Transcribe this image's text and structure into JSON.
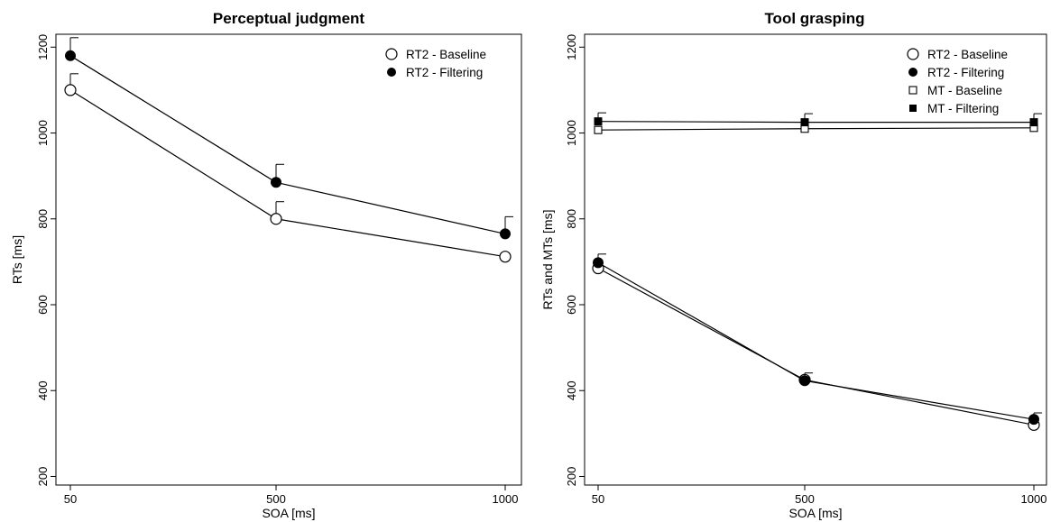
{
  "chart_data": [
    {
      "type": "line",
      "title": "Perceptual judgment",
      "xlabel": "SOA [ms]",
      "ylabel": "RTs [ms]",
      "x": [
        50,
        500,
        1000
      ],
      "x_tick_labels": [
        "50",
        "500",
        "1000"
      ],
      "ylim": [
        180,
        1230
      ],
      "y_ticks": [
        200,
        400,
        600,
        800,
        1000,
        1200
      ],
      "y_tick_labels": [
        "200",
        "400",
        "600",
        "800",
        "1000",
        "1200"
      ],
      "grid": false,
      "legend_position": "top-right",
      "series": [
        {
          "name": "RT2 - Baseline",
          "marker": "open-circle",
          "values": [
            1100,
            800,
            712
          ],
          "error": [
            38,
            40,
            0
          ]
        },
        {
          "name": "RT2 - Filtering",
          "marker": "filled-circle",
          "values": [
            1180,
            885,
            765
          ],
          "error": [
            42,
            42,
            40
          ]
        }
      ]
    },
    {
      "type": "line",
      "title": "Tool grasping",
      "xlabel": "SOA [ms]",
      "ylabel": "RTs and MTs [ms]",
      "x": [
        50,
        500,
        1000
      ],
      "x_tick_labels": [
        "50",
        "500",
        "1000"
      ],
      "ylim": [
        180,
        1230
      ],
      "y_ticks": [
        200,
        400,
        600,
        800,
        1000,
        1200
      ],
      "y_tick_labels": [
        "200",
        "400",
        "600",
        "800",
        "1000",
        "1200"
      ],
      "grid": false,
      "legend_position": "top-right",
      "series": [
        {
          "name": "RT2 - Baseline",
          "marker": "open-circle",
          "values": [
            685,
            425,
            320
          ],
          "error": [
            0,
            0,
            0
          ]
        },
        {
          "name": "RT2 - Filtering",
          "marker": "filled-circle",
          "values": [
            698,
            423,
            333
          ],
          "error": [
            20,
            18,
            15
          ]
        },
        {
          "name": "MT - Baseline",
          "marker": "open-square",
          "values": [
            1007,
            1010,
            1012
          ],
          "error": [
            0,
            0,
            0
          ]
        },
        {
          "name": "MT - Filtering",
          "marker": "filled-square",
          "values": [
            1027,
            1025,
            1025
          ],
          "error": [
            20,
            20,
            20
          ]
        }
      ]
    }
  ]
}
